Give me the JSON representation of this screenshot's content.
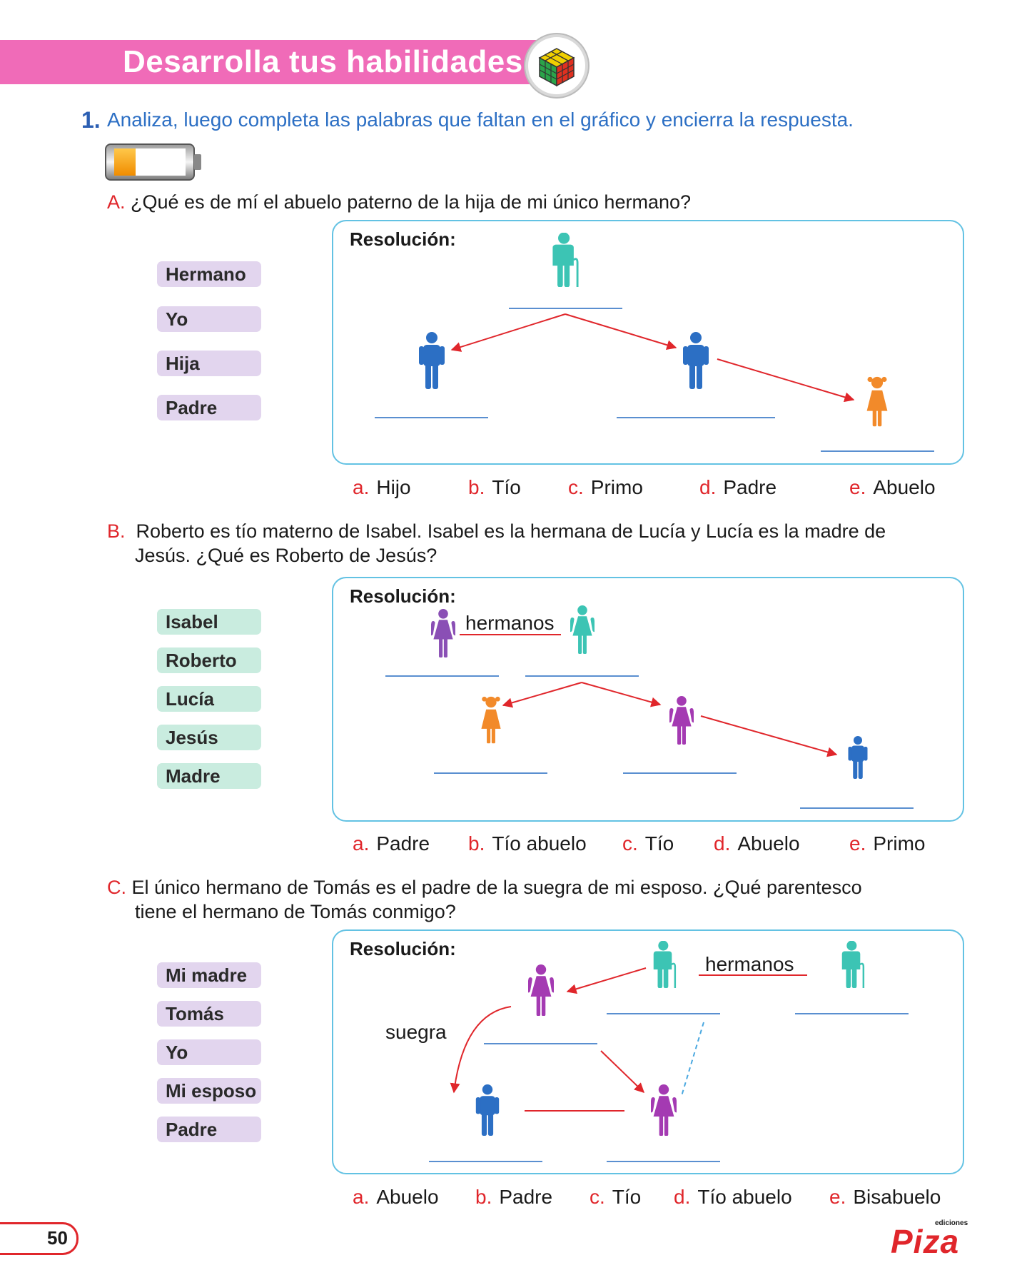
{
  "header": {
    "title": "Desarrolla tus habilidades"
  },
  "exercise": {
    "number": "1.",
    "instruction": "Analiza, luego completa las palabras que faltan en el gráfico y encierra la respuesta."
  },
  "resolution_label": "Resolución:",
  "sections": [
    {
      "letter": "A.",
      "question": "¿Qué es de mí el abuelo paterno de la hija de mi único hermano?",
      "word_bank": [
        "Hermano",
        "Yo",
        "Hija",
        "Padre"
      ],
      "options": [
        {
          "letter": "a.",
          "text": "Hijo"
        },
        {
          "letter": "b.",
          "text": "Tío"
        },
        {
          "letter": "c.",
          "text": "Primo"
        },
        {
          "letter": "d.",
          "text": "Padre"
        },
        {
          "letter": "e.",
          "text": "Abuelo"
        }
      ]
    },
    {
      "letter": "B.",
      "question_line1": "Roberto es tío materno de Isabel. Isabel es la hermana de Lucía y Lucía es la madre de",
      "question_line2": "Jesús. ¿Qué es Roberto de Jesús?",
      "word_bank": [
        "Isabel",
        "Roberto",
        "Lucía",
        "Jesús",
        "Madre"
      ],
      "diagram_label": "hermanos",
      "options": [
        {
          "letter": "a.",
          "text": "Padre"
        },
        {
          "letter": "b.",
          "text": "Tío abuelo"
        },
        {
          "letter": "c.",
          "text": "Tío"
        },
        {
          "letter": "d.",
          "text": "Abuelo"
        },
        {
          "letter": "e.",
          "text": "Primo"
        }
      ]
    },
    {
      "letter": "C.",
      "question_line1": "El único hermano de Tomás es el padre de la suegra de mi esposo. ¿Qué parentesco",
      "question_line2": "tiene el hermano de Tomás conmigo?",
      "word_bank": [
        "Mi madre",
        "Tomás",
        "Yo",
        "Mi esposo",
        "Padre"
      ],
      "diagram_label_1": "hermanos",
      "diagram_label_2": "suegra",
      "options": [
        {
          "letter": "a.",
          "text": "Abuelo"
        },
        {
          "letter": "b.",
          "text": "Padre"
        },
        {
          "letter": "c.",
          "text": "Tío"
        },
        {
          "letter": "d.",
          "text": "Tío abuelo"
        },
        {
          "letter": "e.",
          "text": "Bisabuelo"
        }
      ]
    }
  ],
  "footer": {
    "page_number": "50",
    "publisher_small": "ediciones",
    "publisher": "Piza"
  },
  "colors": {
    "banner": "#f06bb8",
    "instruction": "#2c6fc4",
    "accent_red": "#e0262b",
    "box_border": "#63c2e3",
    "male": "#2c6fc4",
    "elder": "#3cc4b4",
    "girl": "#f28a2a",
    "female_purple": "#a43ab2",
    "female_violet": "#8a4fb5"
  },
  "icons": [
    "rubiks-cube-icon",
    "battery-level-icon",
    "person-icon",
    "elder-with-cane-icon",
    "girl-icon",
    "woman-icon"
  ]
}
